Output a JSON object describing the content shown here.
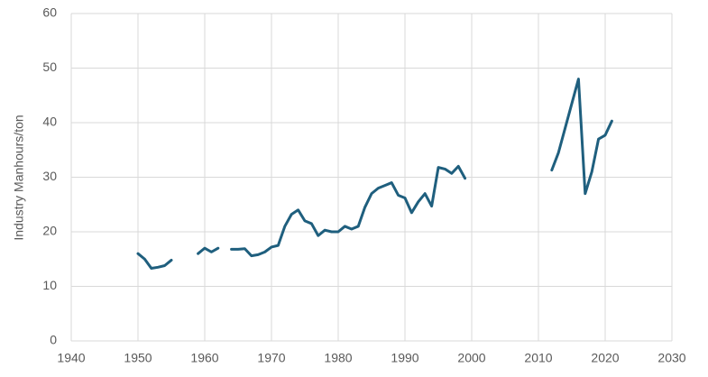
{
  "chart_data": {
    "type": "line",
    "y_label": "Industry Manhours/ton",
    "x": [
      1950,
      1951,
      1952,
      1953,
      1954,
      1955,
      1956,
      1957,
      1958,
      1959,
      1960,
      1961,
      1962,
      1963,
      1964,
      1965,
      1966,
      1967,
      1968,
      1969,
      1970,
      1971,
      1972,
      1973,
      1974,
      1975,
      1976,
      1977,
      1978,
      1979,
      1980,
      1981,
      1982,
      1983,
      1984,
      1985,
      1986,
      1987,
      1988,
      1989,
      1990,
      1991,
      1992,
      1993,
      1994,
      1995,
      1996,
      1997,
      1998,
      1999,
      2000,
      2001,
      2002,
      2003,
      2004,
      2005,
      2006,
      2007,
      2008,
      2009,
      2010,
      2011,
      2012,
      2013,
      2014,
      2015,
      2016,
      2017,
      2018,
      2019,
      2020,
      2021
    ],
    "values": [
      16,
      15,
      13.3,
      13.5,
      13.8,
      14.8,
      null,
      null,
      null,
      16,
      17,
      16.3,
      17,
      null,
      16.8,
      16.8,
      16.9,
      15.6,
      15.8,
      16.3,
      17.2,
      17.5,
      21,
      23.2,
      24,
      22,
      21.5,
      19.3,
      20.3,
      20,
      20,
      21,
      20.5,
      21,
      24.5,
      27,
      28,
      28.5,
      29,
      26.7,
      26.2,
      23.5,
      25.5,
      27,
      24.7,
      31.8,
      31.5,
      30.7,
      32,
      29.8,
      null,
      null,
      null,
      null,
      null,
      null,
      null,
      null,
      null,
      null,
      null,
      null,
      31.3,
      34.5,
      39,
      43.5,
      48,
      27,
      31,
      37,
      37.7,
      40.3
    ],
    "color": "#1f5f7e",
    "xlim": [
      1940,
      2030
    ],
    "xticks": [
      1940,
      1950,
      1960,
      1970,
      1980,
      1990,
      2000,
      2010,
      2020,
      2030
    ],
    "ylim": [
      0,
      60
    ],
    "yticks": [
      0,
      10,
      20,
      30,
      40,
      50,
      60
    ],
    "grid": true
  }
}
